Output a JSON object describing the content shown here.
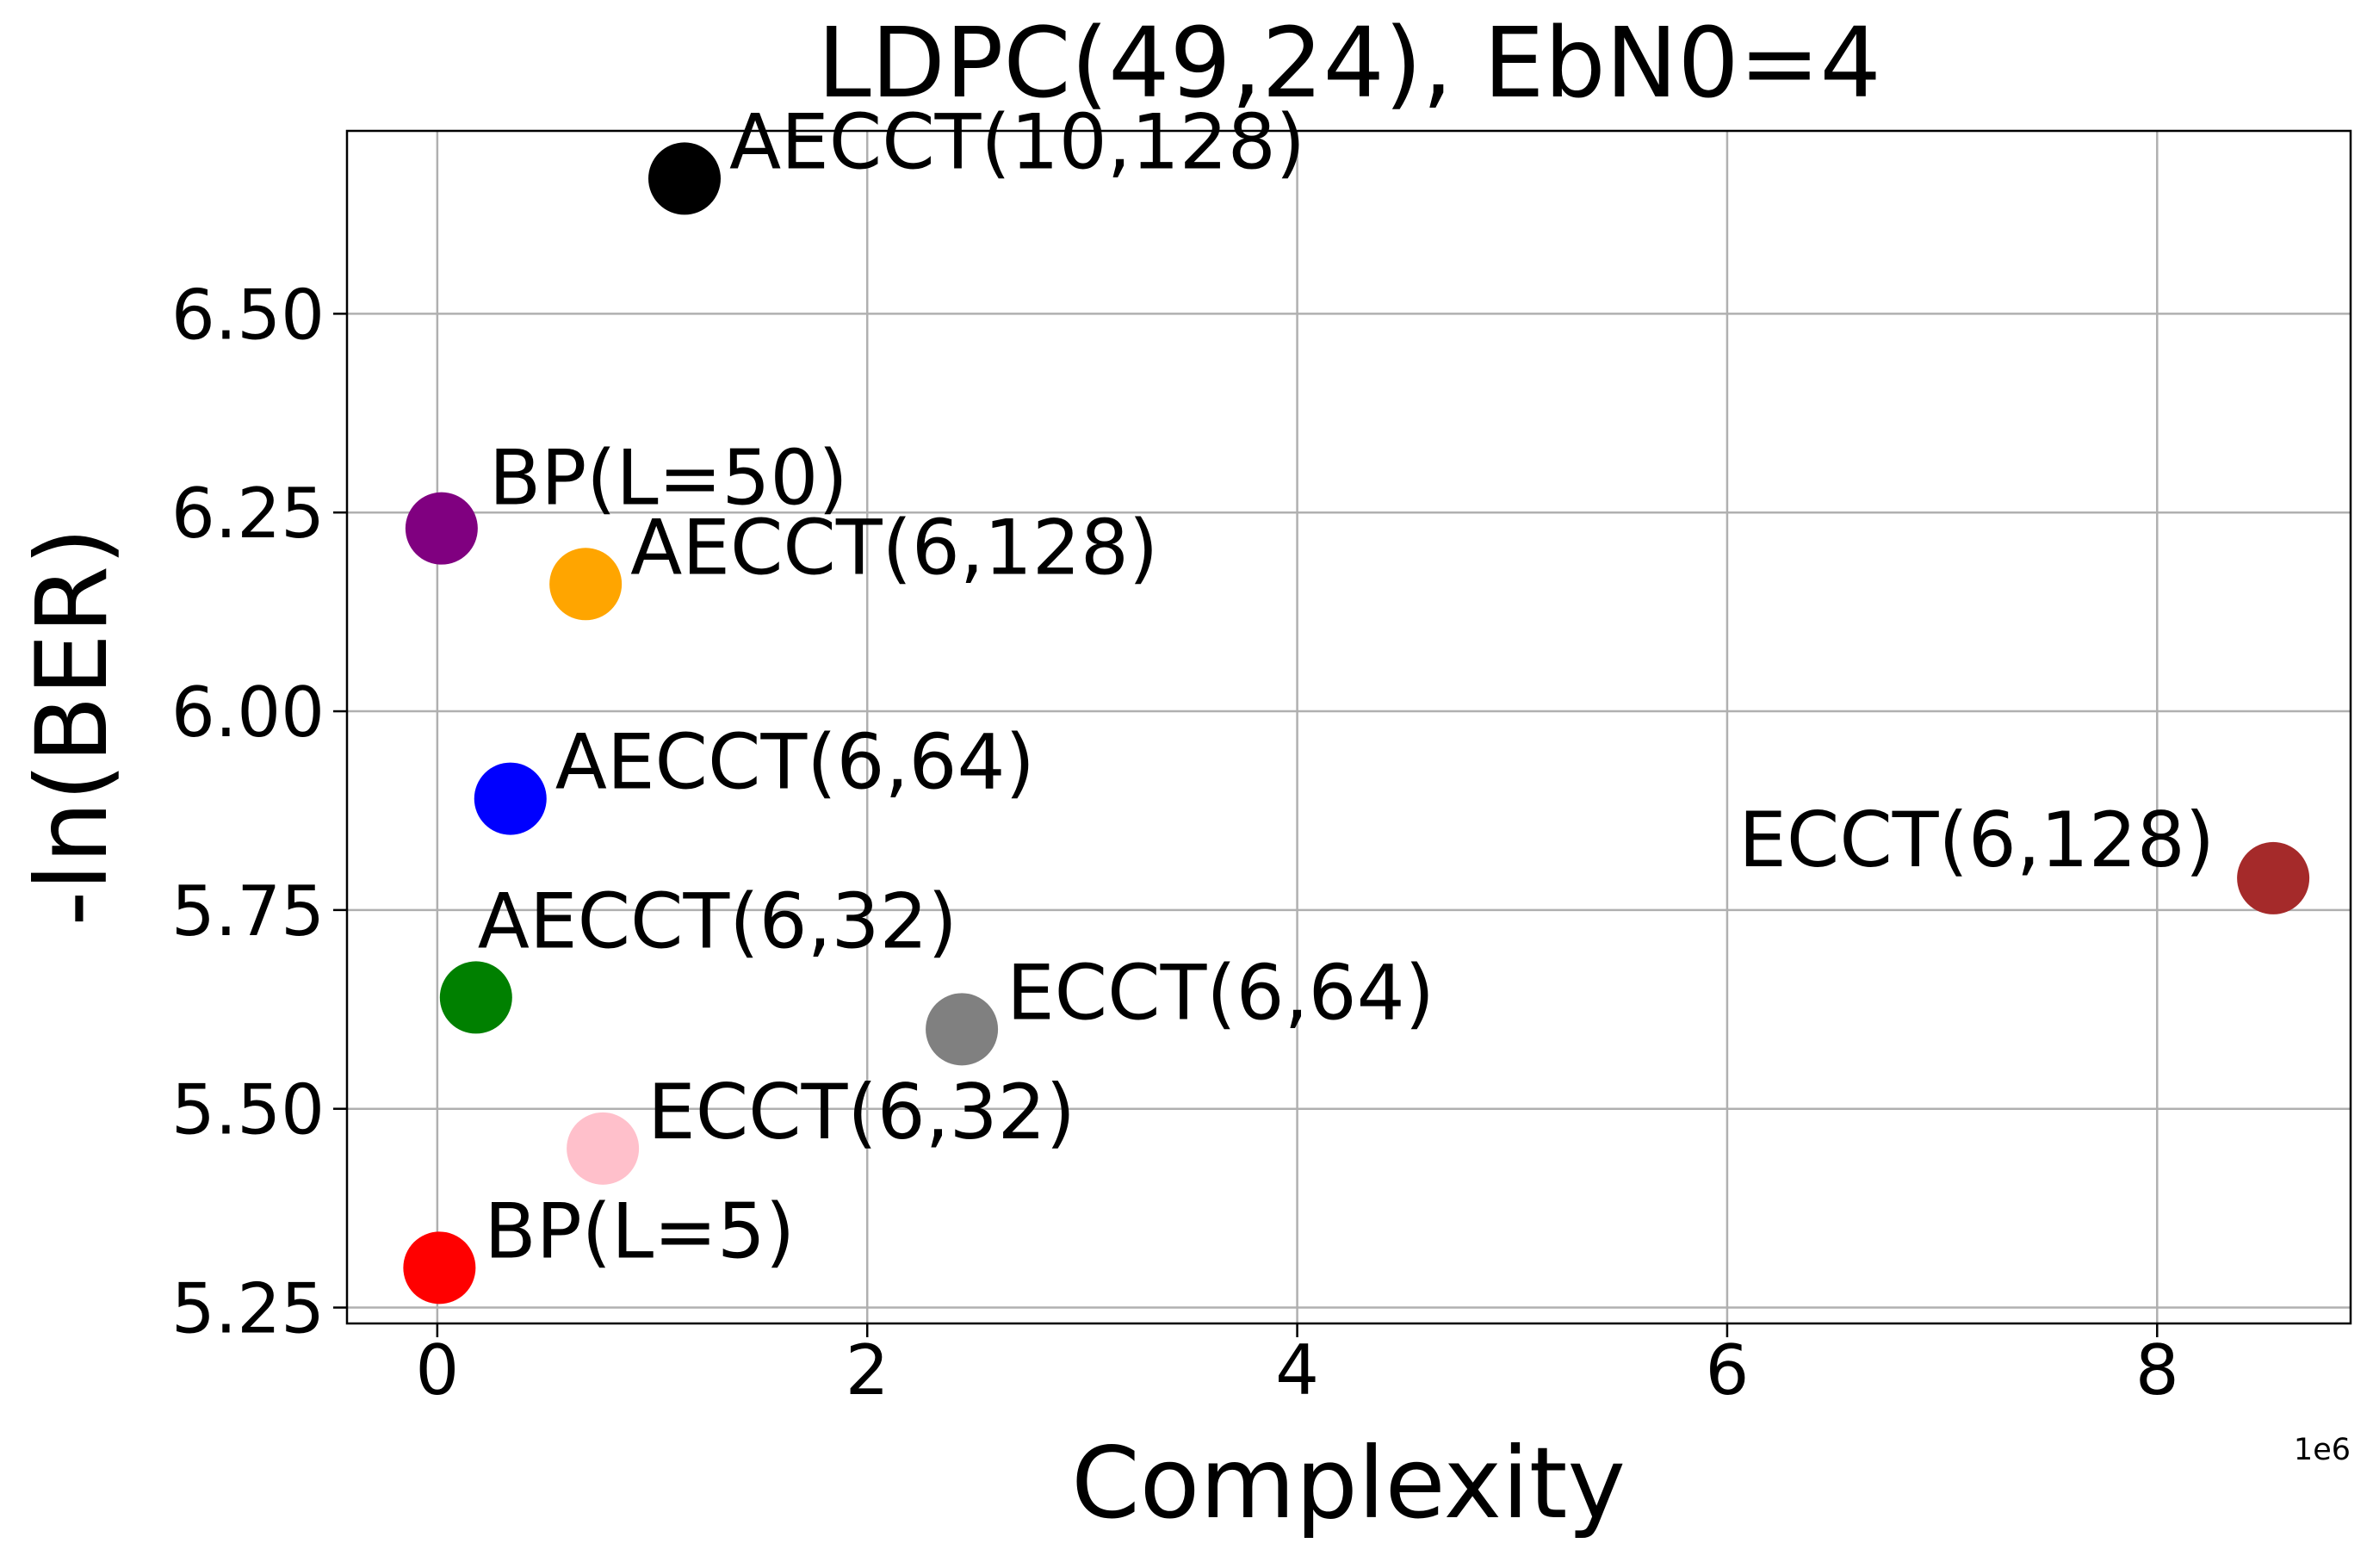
{
  "chart_data": {
    "type": "scatter",
    "title": "LDPC(49,24), EbN0=4",
    "xlabel": "Complexity",
    "ylabel": "-ln(BER)",
    "x_offset_text": "1e6",
    "x_scale": 1000000,
    "xlim": [
      -0.42,
      8.9
    ],
    "ylim": [
      5.23,
      6.73
    ],
    "xticks": [
      0,
      2,
      4,
      6,
      8
    ],
    "xtick_labels": [
      "0",
      "2",
      "4",
      "6",
      "8"
    ],
    "yticks": [
      5.25,
      5.5,
      5.75,
      6.0,
      6.25,
      6.5
    ],
    "ytick_labels": [
      "5.25",
      "5.50",
      "5.75",
      "6.00",
      "6.25",
      "6.50"
    ],
    "grid": true,
    "points": [
      {
        "label": "AECCT(10,128)",
        "x": 1.15,
        "y": 6.67,
        "color": "#000000",
        "label_side": "right"
      },
      {
        "label": "BP(L=50)",
        "x": 0.02,
        "y": 6.23,
        "color": "#800080",
        "label_side": "upper-right"
      },
      {
        "label": "AECCT(6,128)",
        "x": 0.69,
        "y": 6.16,
        "color": "#FFA500",
        "label_side": "right"
      },
      {
        "label": "AECCT(6,64)",
        "x": 0.34,
        "y": 5.89,
        "color": "#0000FF",
        "label_side": "right"
      },
      {
        "label": "ECCT(6,128)",
        "x": 8.54,
        "y": 5.79,
        "color": "#A52A2A",
        "label_side": "left"
      },
      {
        "label": "AECCT(6,32)",
        "x": 0.18,
        "y": 5.64,
        "color": "#008000",
        "label_side": "above"
      },
      {
        "label": "ECCT(6,64)",
        "x": 2.44,
        "y": 5.6,
        "color": "#808080",
        "label_side": "right"
      },
      {
        "label": "ECCT(6,32)",
        "x": 0.77,
        "y": 5.45,
        "color": "#FFC0CB",
        "label_side": "right"
      },
      {
        "label": "BP(L=5)",
        "x": 0.01,
        "y": 5.3,
        "color": "#FF0000",
        "label_side": "right"
      }
    ]
  }
}
